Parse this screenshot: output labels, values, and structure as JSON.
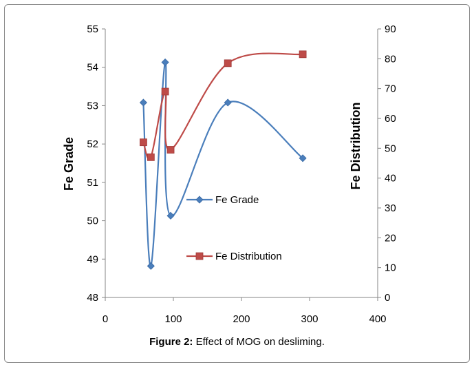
{
  "chart_data": {
    "type": "line",
    "title": "",
    "x": [
      56,
      67,
      88,
      96,
      180,
      290
    ],
    "xlim": [
      0,
      400
    ],
    "xticks": [
      0,
      100,
      200,
      300,
      400
    ],
    "xlabel": "",
    "y_left": {
      "label": "Fe Grade",
      "lim": [
        48,
        55
      ],
      "ticks": [
        48,
        49,
        50,
        51,
        52,
        53,
        54,
        55
      ]
    },
    "y_right": {
      "label": "Fe  Distribution",
      "lim": [
        0,
        90
      ],
      "ticks": [
        0,
        10,
        20,
        30,
        40,
        50,
        60,
        70,
        80,
        90
      ]
    },
    "series": [
      {
        "name": "Fe Grade",
        "axis": "left",
        "marker": "diamond",
        "color": "#4a7ebb",
        "values": [
          53.08,
          48.82,
          54.13,
          50.13,
          53.08,
          51.63
        ]
      },
      {
        "name": "Fe Distribution",
        "axis": "right",
        "marker": "square",
        "color": "#be4b48",
        "values": [
          52,
          47,
          69,
          49.5,
          78.5,
          81.5
        ]
      }
    ],
    "legend_placement": "inside-center"
  },
  "caption": {
    "label": "Figure 2:",
    "text": "Effect of MOG on desliming."
  }
}
